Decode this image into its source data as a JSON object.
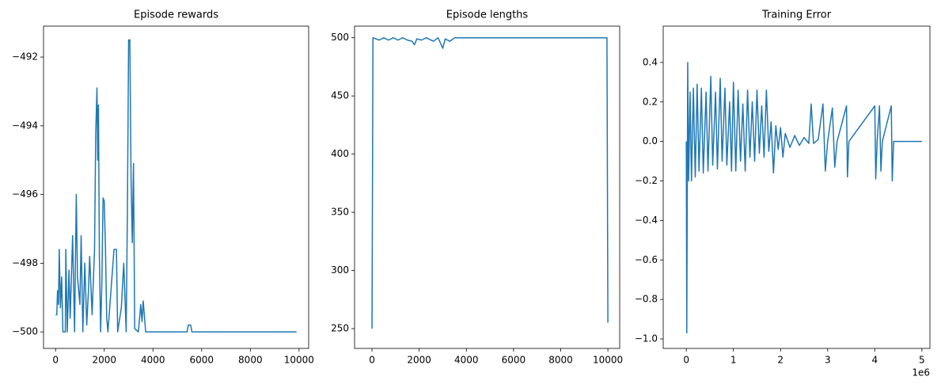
{
  "chart_data": [
    {
      "type": "line",
      "title": "Episode rewards",
      "color": "#1f77b4",
      "x": [
        0,
        50,
        80,
        120,
        150,
        200,
        250,
        300,
        400,
        420,
        480,
        550,
        600,
        700,
        780,
        850,
        900,
        1000,
        1050,
        1120,
        1200,
        1280,
        1350,
        1400,
        1500,
        1600,
        1650,
        1700,
        1730,
        1760,
        1800,
        1850,
        1900,
        1950,
        2000,
        2050,
        2100,
        2150,
        2400,
        2500,
        2550,
        2700,
        2800,
        2900,
        2950,
        3000,
        3050,
        3100,
        3150,
        3200,
        3250,
        3400,
        3500,
        3550,
        3600,
        3700,
        5400,
        5450,
        5550,
        5600,
        9900
      ],
      "values": [
        -499.5,
        -499.5,
        -498.8,
        -499.2,
        -497.6,
        -499.3,
        -498.4,
        -500,
        -500,
        -497.6,
        -500,
        -498.2,
        -499.6,
        -497.2,
        -500,
        -496,
        -498.4,
        -499.2,
        -497.2,
        -500,
        -498,
        -499.8,
        -498.8,
        -497.8,
        -499.5,
        -497.6,
        -494.2,
        -492.9,
        -495,
        -493.4,
        -497.8,
        -500,
        -498.6,
        -496.1,
        -496.2,
        -497.6,
        -499.6,
        -500,
        -497.6,
        -497.6,
        -500,
        -499.3,
        -498,
        -500,
        -496.5,
        -491.5,
        -491.5,
        -495.5,
        -497.4,
        -495.1,
        -499.9,
        -500,
        -499.2,
        -499.7,
        -499.1,
        -500,
        -500,
        -499.8,
        -499.8,
        -500,
        -500
      ],
      "xlim": [
        -495,
        10395
      ],
      "ylim": [
        -500.48,
        -491.1
      ],
      "xticks": [
        0,
        2000,
        4000,
        6000,
        8000,
        10000
      ],
      "yticks": [
        {
          "value": -500,
          "label": "−500"
        },
        {
          "value": -498,
          "label": "−498"
        },
        {
          "value": -496,
          "label": "−496"
        },
        {
          "value": -494,
          "label": "−494"
        },
        {
          "value": -492,
          "label": "−492"
        }
      ]
    },
    {
      "type": "line",
      "title": "Episode lengths",
      "color": "#1f77b4",
      "x": [
        0,
        40,
        300,
        500,
        700,
        900,
        1100,
        1300,
        1500,
        1700,
        1800,
        1900,
        2100,
        2300,
        2600,
        2800,
        3000,
        3100,
        3300,
        3500,
        4000,
        9960,
        10000
      ],
      "values": [
        250,
        500,
        498,
        500,
        498,
        500,
        498,
        500,
        498,
        497,
        494,
        499,
        498,
        500,
        497,
        500,
        491,
        499,
        497,
        500,
        500,
        500,
        255
      ],
      "xlim": [
        -740,
        10500
      ],
      "ylim": [
        233,
        510
      ],
      "xticks": [
        0,
        2000,
        4000,
        6000,
        8000,
        10000
      ],
      "yticks": [
        250,
        300,
        350,
        400,
        450,
        500
      ]
    },
    {
      "type": "line",
      "title": "Training Error",
      "color": "#1f77b4",
      "offset_text": "1e6",
      "x": [
        0,
        10000,
        20000,
        30000,
        50000,
        80000,
        110000,
        150000,
        190000,
        230000,
        270000,
        320000,
        360000,
        420000,
        460000,
        520000,
        560000,
        620000,
        660000,
        720000,
        760000,
        820000,
        860000,
        920000,
        960000,
        1000000,
        1050000,
        1100000,
        1150000,
        1200000,
        1250000,
        1300000,
        1350000,
        1400000,
        1450000,
        1500000,
        1550000,
        1600000,
        1650000,
        1700000,
        1750000,
        1800000,
        1850000,
        1900000,
        1950000,
        2000000,
        2050000,
        2100000,
        2200000,
        2300000,
        2400000,
        2500000,
        2600000,
        2650000,
        2700000,
        2800000,
        2900000,
        2950000,
        3000000,
        3100000,
        3150000,
        3200000,
        3400000,
        3420000,
        3450000,
        4000000,
        4020000,
        4050000,
        4100000,
        4130000,
        4160000,
        4350000,
        4370000,
        4400000,
        5000000
      ],
      "values": [
        0,
        -0.97,
        -0.3,
        0.4,
        -0.2,
        0.25,
        -0.2,
        0.27,
        -0.18,
        0.29,
        -0.15,
        0.27,
        -0.16,
        0.25,
        -0.15,
        0.33,
        -0.12,
        0.25,
        -0.14,
        0.32,
        -0.1,
        0.27,
        -0.12,
        0.2,
        -0.15,
        0.3,
        -0.15,
        0.26,
        -0.1,
        0.19,
        -0.15,
        0.26,
        -0.08,
        0.2,
        -0.1,
        0.26,
        -0.06,
        0.18,
        -0.08,
        0.26,
        -0.05,
        0.1,
        -0.16,
        0.08,
        -0.04,
        0.07,
        -0.08,
        0.04,
        -0.03,
        0.03,
        -0.02,
        0.02,
        -0.01,
        0.19,
        -0.01,
        0.01,
        0.19,
        -0.15,
        0,
        0.17,
        -0.13,
        0,
        0.18,
        -0.18,
        0,
        0.18,
        -0.19,
        0,
        0.18,
        -0.15,
        0,
        0.18,
        -0.2,
        0,
        0
      ],
      "xlim": [
        -490000,
        5170000
      ],
      "ylim": [
        -1.048,
        0.584
      ],
      "xticks": [
        {
          "value": 0,
          "label": "0"
        },
        {
          "value": 1000000,
          "label": "1"
        },
        {
          "value": 2000000,
          "label": "2"
        },
        {
          "value": 3000000,
          "label": "3"
        },
        {
          "value": 4000000,
          "label": "4"
        },
        {
          "value": 5000000,
          "label": "5"
        }
      ],
      "yticks": [
        {
          "value": -1.0,
          "label": "−1.0"
        },
        {
          "value": -0.8,
          "label": "−0.8"
        },
        {
          "value": -0.6,
          "label": "−0.6"
        },
        {
          "value": -0.4,
          "label": "−0.4"
        },
        {
          "value": -0.2,
          "label": "−0.2"
        },
        {
          "value": 0,
          "label": "0.0"
        },
        {
          "value": 0.2,
          "label": "0.2"
        },
        {
          "value": 0.4,
          "label": "0.4"
        }
      ]
    }
  ]
}
